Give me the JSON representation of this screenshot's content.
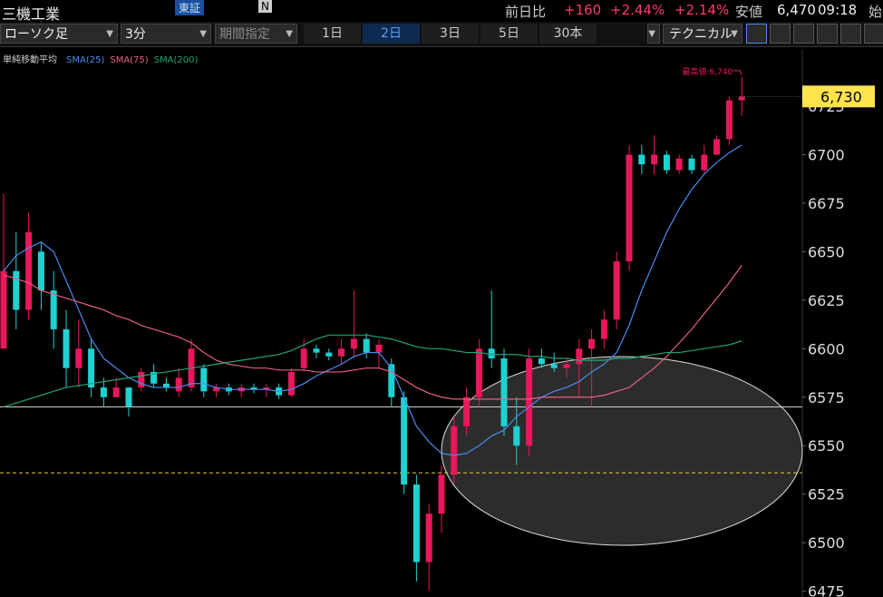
{
  "header": {
    "title": "三機工業",
    "exchange": "東証",
    "badge": "N",
    "change_label": "前日比",
    "change": "+160",
    "change_pct": "+2.44%",
    "change_pct2": "+2.14%",
    "low_label": "安値",
    "low": "6,470",
    "time": "09:18",
    "open_label": "始"
  },
  "toolbar": {
    "chart_type": "ローソク足",
    "interval": "3分",
    "period": "期間指定",
    "ranges": [
      "1日",
      "2日",
      "3日",
      "5日",
      "30本"
    ],
    "active_range": 1,
    "technical": "テクニカル"
  },
  "chart_data": {
    "type": "candlestick",
    "indicator_label": "単純移動平均",
    "up_color": "#e8185a",
    "down_color": "#1ed2d2",
    "ylim": [
      6472,
      6754
    ],
    "yticks": [
      6475,
      6500,
      6525,
      6550,
      6575,
      6600,
      6625,
      6650,
      6675,
      6700,
      6725
    ],
    "candles": [
      [
        6600,
        6680,
        6600,
        6640
      ],
      [
        6640,
        6660,
        6610,
        6620
      ],
      [
        6620,
        6670,
        6615,
        6660
      ],
      [
        6650,
        6655,
        6620,
        6630
      ],
      [
        6630,
        6640,
        6600,
        6610
      ],
      [
        6610,
        6620,
        6580,
        6590
      ],
      [
        6590,
        6615,
        6580,
        6600
      ],
      [
        6600,
        6605,
        6575,
        6580
      ],
      [
        6580,
        6585,
        6570,
        6575
      ],
      [
        6575,
        6585,
        6575,
        6580
      ],
      [
        6580,
        6580,
        6565,
        6570
      ],
      [
        6580,
        6590,
        6578,
        6588
      ],
      [
        6588,
        6592,
        6580,
        6582
      ],
      [
        6582,
        6585,
        6578,
        6580
      ],
      [
        6578,
        6590,
        6575,
        6585
      ],
      [
        6580,
        6605,
        6578,
        6600
      ],
      [
        6590,
        6592,
        6575,
        6578
      ],
      [
        6578,
        6582,
        6575,
        6580
      ],
      [
        6580,
        6582,
        6576,
        6578
      ],
      [
        6578,
        6582,
        6575,
        6580
      ],
      [
        6580,
        6582,
        6577,
        6579
      ],
      [
        6579,
        6582,
        6575,
        6580
      ],
      [
        6580,
        6582,
        6574,
        6576
      ],
      [
        6576,
        6590,
        6575,
        6588
      ],
      [
        6590,
        6605,
        6588,
        6600
      ],
      [
        6600,
        6602,
        6595,
        6598
      ],
      [
        6598,
        6600,
        6594,
        6596
      ],
      [
        6596,
        6605,
        6592,
        6600
      ],
      [
        6600,
        6630,
        6595,
        6605
      ],
      [
        6605,
        6608,
        6595,
        6598
      ],
      [
        6598,
        6605,
        6590,
        6602
      ],
      [
        6592,
        6595,
        6570,
        6575
      ],
      [
        6575,
        6578,
        6525,
        6530
      ],
      [
        6530,
        6535,
        6480,
        6490
      ],
      [
        6490,
        6520,
        6475,
        6515
      ],
      [
        6515,
        6540,
        6505,
        6535
      ],
      [
        6535,
        6565,
        6530,
        6560
      ],
      [
        6560,
        6580,
        6555,
        6575
      ],
      [
        6575,
        6605,
        6570,
        6600
      ],
      [
        6600,
        6630,
        6590,
        6595
      ],
      [
        6595,
        6600,
        6555,
        6560
      ],
      [
        6560,
        6575,
        6540,
        6550
      ],
      [
        6550,
        6600,
        6545,
        6595
      ],
      [
        6595,
        6600,
        6590,
        6592
      ],
      [
        6592,
        6598,
        6588,
        6590
      ],
      [
        6590,
        6595,
        6585,
        6592
      ],
      [
        6592,
        6605,
        6575,
        6600
      ],
      [
        6600,
        6610,
        6570,
        6605
      ],
      [
        6605,
        6620,
        6600,
        6615
      ],
      [
        6615,
        6650,
        6610,
        6645
      ],
      [
        6645,
        6705,
        6640,
        6700
      ],
      [
        6700,
        6705,
        6690,
        6695
      ],
      [
        6695,
        6710,
        6690,
        6700
      ],
      [
        6700,
        6702,
        6690,
        6692
      ],
      [
        6692,
        6700,
        6690,
        6698
      ],
      [
        6698,
        6700,
        6690,
        6692
      ],
      [
        6692,
        6705,
        6690,
        6700
      ],
      [
        6700,
        6710,
        6700,
        6708
      ],
      [
        6708,
        6730,
        6705,
        6728
      ],
      [
        6728,
        6740,
        6720,
        6730
      ]
    ],
    "series": [
      {
        "name": "SMA(25)",
        "color": "#4a8cf0",
        "values": [
          6640,
          6648,
          6652,
          6655,
          6650,
          6635,
          6620,
          6605,
          6595,
          6590,
          6585,
          6582,
          6580,
          6580,
          6580,
          6582,
          6582,
          6580,
          6579,
          6579,
          6579,
          6579,
          6578,
          6579,
          6582,
          6586,
          6589,
          6592,
          6596,
          6598,
          6598,
          6590,
          6575,
          6560,
          6552,
          6546,
          6545,
          6546,
          6550,
          6555,
          6558,
          6565,
          6570,
          6575,
          6578,
          6580,
          6583,
          6588,
          6592,
          6598,
          6612,
          6630,
          6645,
          6660,
          6672,
          6682,
          6690,
          6696,
          6701,
          6705
        ]
      },
      {
        "name": "SMA(75)",
        "color": "#e6607e",
        "values": [
          6638,
          6636,
          6634,
          6630,
          6628,
          6626,
          6624,
          6622,
          6620,
          6617,
          6615,
          6612,
          6610,
          6608,
          6606,
          6603,
          6598,
          6594,
          6592,
          6591,
          6590,
          6590,
          6589,
          6589,
          6589,
          6588,
          6588,
          6588,
          6589,
          6590,
          6590,
          6588,
          6584,
          6580,
          6577,
          6575,
          6574,
          6574,
          6574,
          6574,
          6574,
          6574,
          6574,
          6575,
          6575,
          6575,
          6575,
          6575,
          6576,
          6578,
          6580,
          6585,
          6590,
          6596,
          6603,
          6610,
          6618,
          6626,
          6634,
          6643
        ]
      },
      {
        "name": "SMA(200)",
        "color": "#1fa37a",
        "values": [
          6570,
          6572,
          6574,
          6576,
          6578,
          6580,
          6581,
          6582,
          6583,
          6584,
          6585,
          6586,
          6587,
          6588,
          6589,
          6590,
          6591,
          6592,
          6593,
          6594,
          6595,
          6596,
          6597,
          6599,
          6602,
          6605,
          6607,
          6607,
          6607,
          6607,
          6606,
          6605,
          6603,
          6601,
          6600,
          6600,
          6599,
          6598,
          6598,
          6597,
          6597,
          6597,
          6596,
          6596,
          6595,
          6595,
          6594,
          6594,
          6594,
          6595,
          6595,
          6596,
          6597,
          6598,
          6598,
          6599,
          6600,
          6601,
          6602,
          6604
        ]
      }
    ],
    "hlines": [
      {
        "value": 6570,
        "color": "#cfcfcf",
        "dashed": false
      },
      {
        "value": 6536,
        "color": "#e6d23a",
        "dashed": true
      }
    ],
    "high_annotation": "最高値:6,740",
    "high_value": 6740,
    "high_index": 59,
    "price_label": "6,730",
    "price_value": 6730,
    "price_color": "#ffe44d"
  }
}
